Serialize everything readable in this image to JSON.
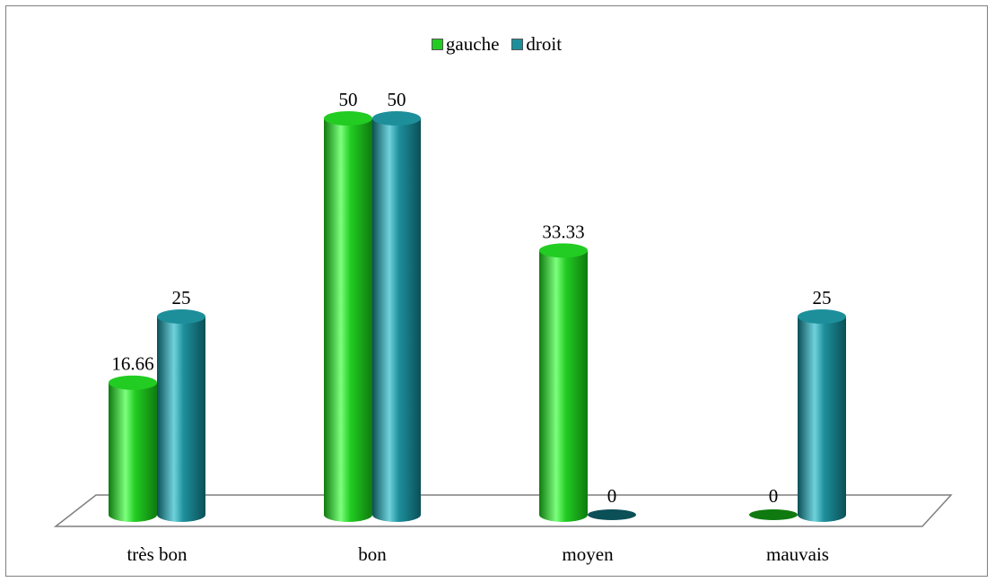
{
  "chart_data": {
    "type": "bar",
    "title": "",
    "xlabel": "",
    "ylabel": "",
    "categories": [
      "très bon",
      "bon",
      "moyen",
      "mauvais"
    ],
    "series": [
      {
        "name": "gauche",
        "values": [
          16.66,
          50,
          33.33,
          0
        ],
        "labels": [
          "16.66",
          "50",
          "33.33",
          "0"
        ]
      },
      {
        "name": "droit",
        "values": [
          25,
          50,
          0,
          25
        ],
        "labels": [
          "25",
          "50",
          "0",
          "25"
        ]
      }
    ],
    "ylim": [
      0,
      50
    ],
    "grid": false,
    "legend_position": "top-center",
    "bar_style": "3d-cylinder",
    "colors": {
      "gauche": "#22cc22",
      "gauche_dark": "#0f7a0f",
      "gauche_light": "#7dff7d",
      "droit": "#1d8f9b",
      "droit_dark": "#0b4f57",
      "droit_light": "#6fd2dc"
    }
  }
}
